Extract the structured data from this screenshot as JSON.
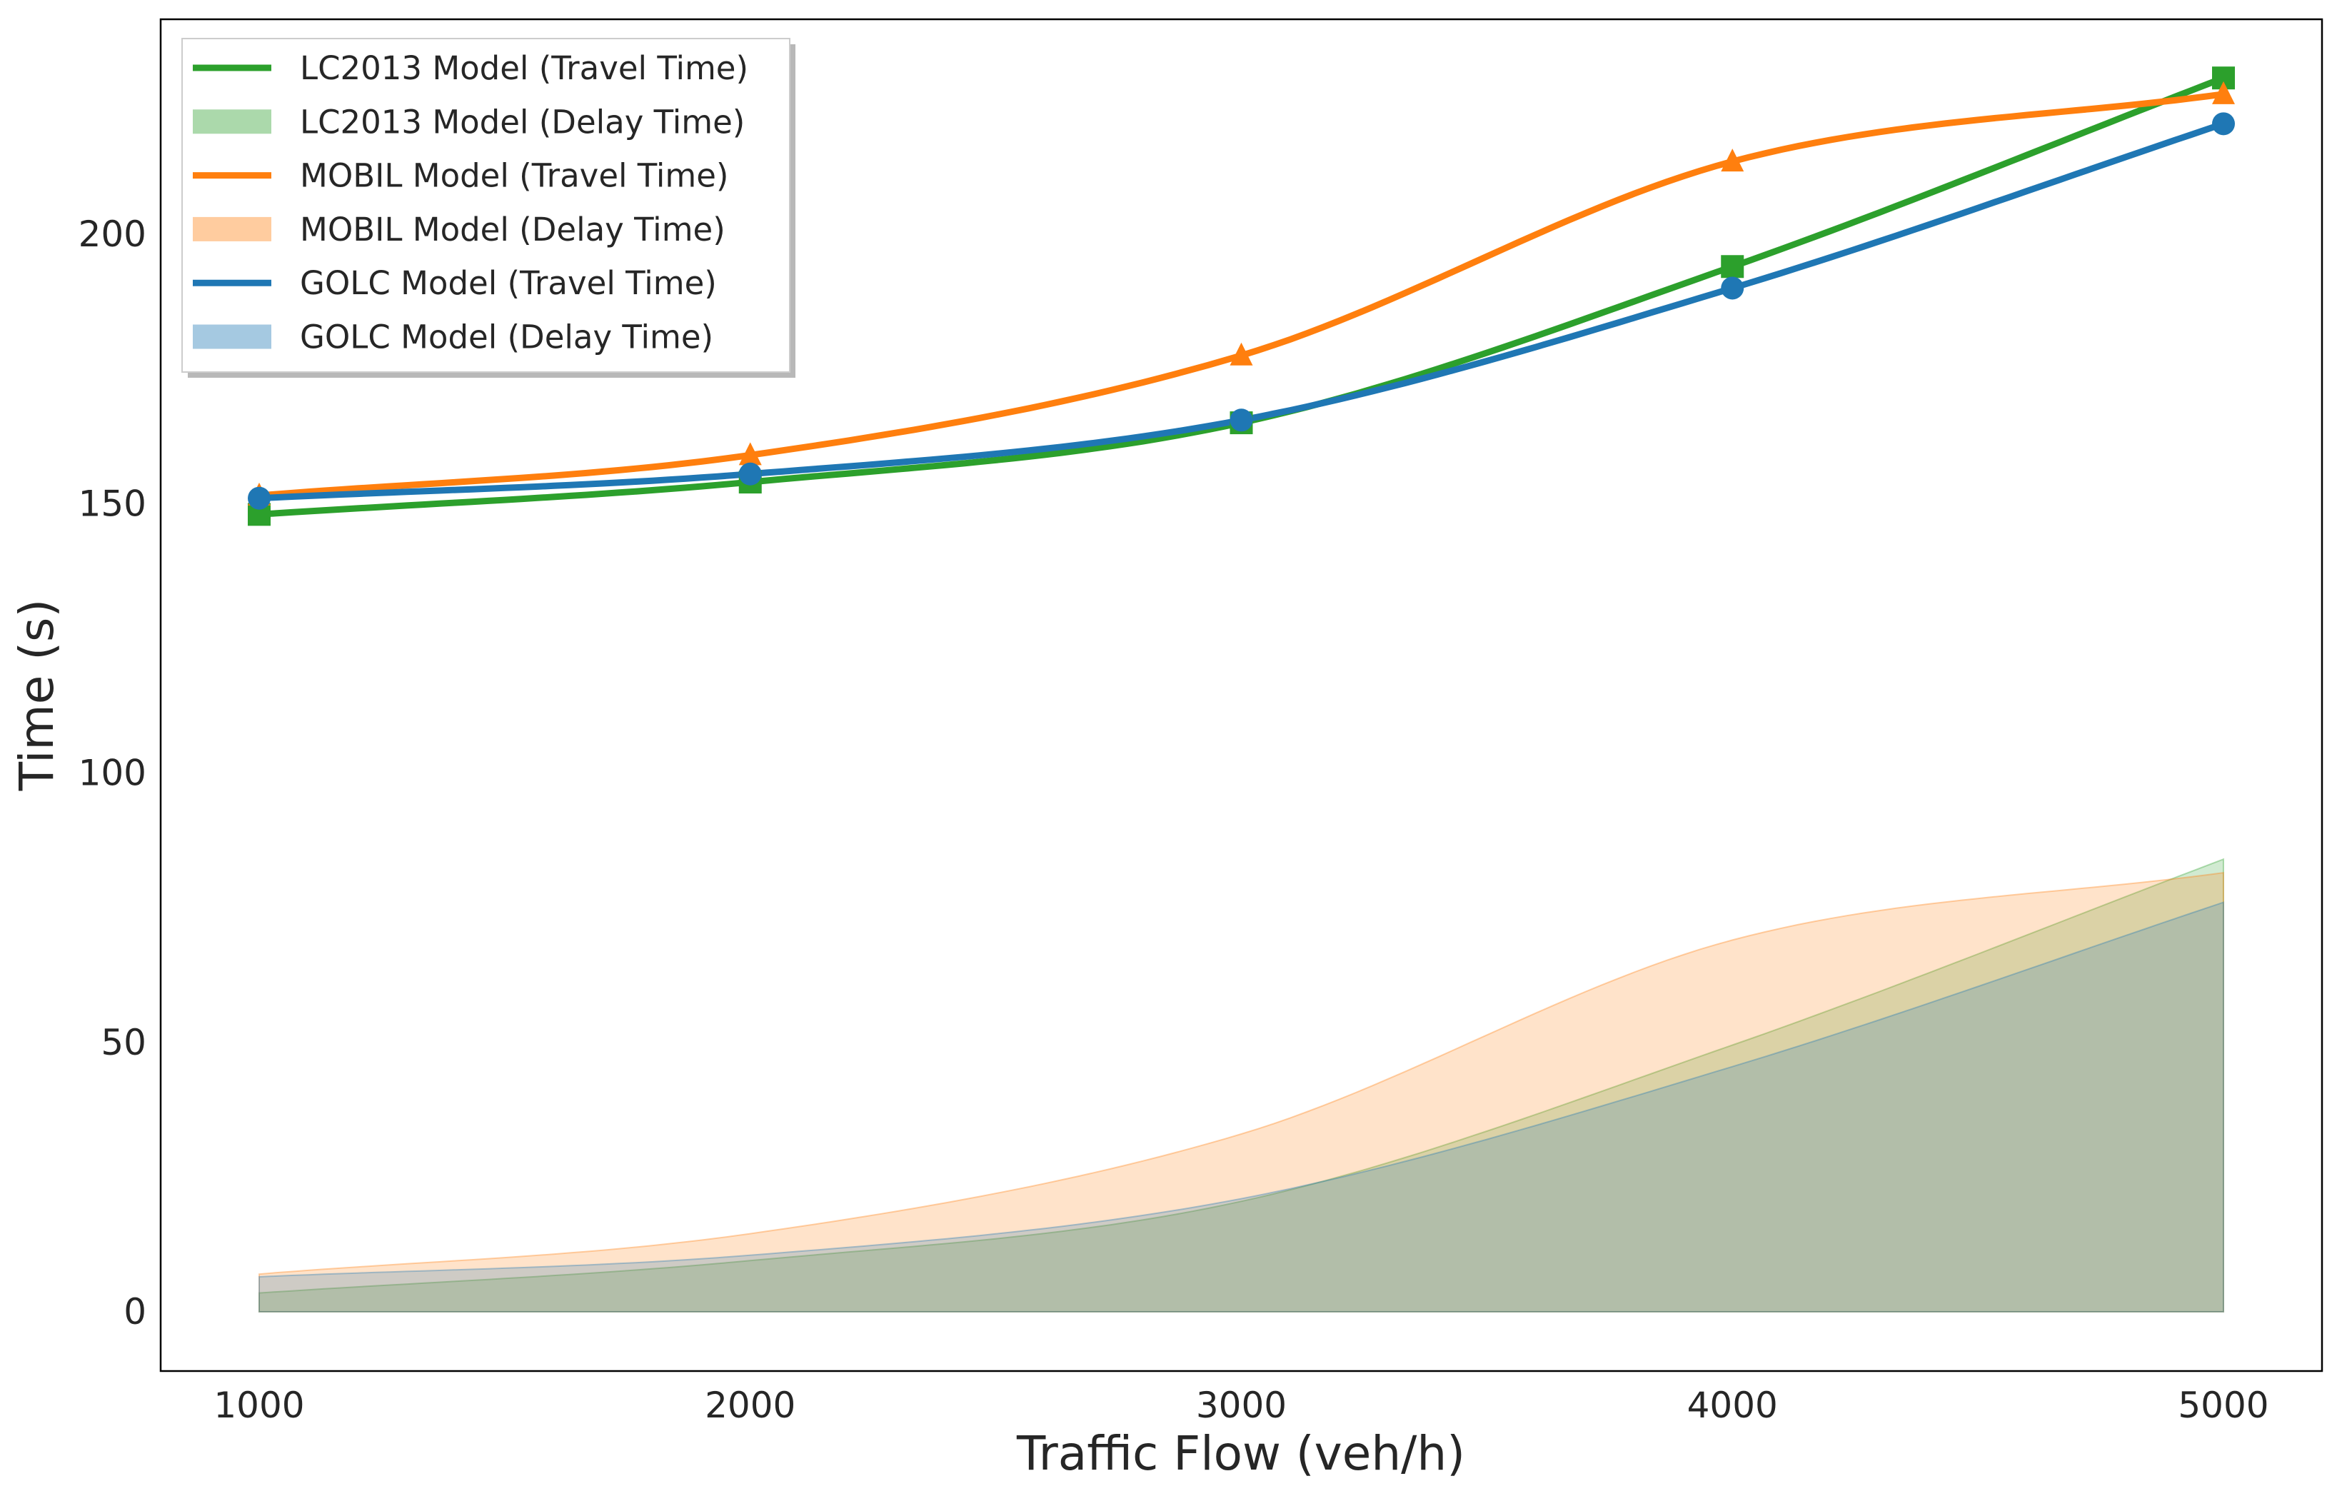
{
  "chart_data": {
    "type": "line",
    "title": "",
    "xlabel": "Traffic Flow (veh/h)",
    "ylabel": "Time (s)",
    "x": [
      1000,
      2000,
      3000,
      4000,
      5000
    ],
    "xlim": [
      800,
      5200
    ],
    "ylim": [
      -11,
      240
    ],
    "xticks": [
      "1000",
      "2000",
      "3000",
      "4000",
      "5000"
    ],
    "yticks": [
      "0",
      "50",
      "100",
      "150",
      "200"
    ],
    "grid": false,
    "legend_placement": "top-left",
    "series": [
      {
        "name": "LC2013 Model (Travel Time)",
        "kind": "line",
        "marker": "square",
        "color": "#2ca02c",
        "values": [
          148,
          154,
          165,
          194,
          229
        ]
      },
      {
        "name": "LC2013 Model (Delay Time)",
        "kind": "area",
        "color": "#2ca02c",
        "values": [
          3.5,
          9.5,
          20.5,
          49.5,
          84
        ]
      },
      {
        "name": "MOBIL Model (Travel Time)",
        "kind": "line",
        "marker": "triangle",
        "color": "#ff7f0e",
        "values": [
          151.5,
          159,
          177.5,
          213.5,
          226
        ]
      },
      {
        "name": "MOBIL Model (Delay Time)",
        "kind": "area",
        "color": "#ff7f0e",
        "values": [
          7,
          14.5,
          33,
          69,
          81.5
        ]
      },
      {
        "name": "GOLC Model (Travel Time)",
        "kind": "line",
        "marker": "circle",
        "color": "#1f77b4",
        "values": [
          151,
          155.5,
          165.5,
          190,
          220.5
        ]
      },
      {
        "name": "GOLC Model (Delay Time)",
        "kind": "area",
        "color": "#1f77b4",
        "values": [
          6.5,
          10.5,
          21,
          45.5,
          76
        ]
      }
    ]
  }
}
